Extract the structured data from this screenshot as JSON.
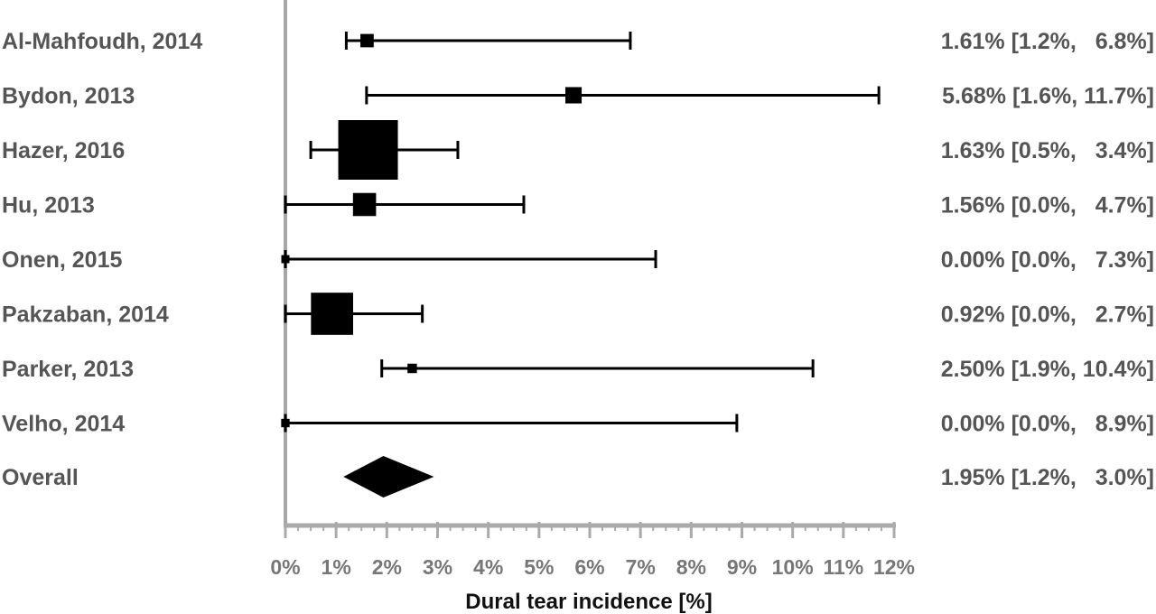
{
  "chart_data": {
    "type": "forest",
    "xlabel": "Dural tear incidence [%]",
    "xlim": [
      0,
      12
    ],
    "x_ticks": [
      0,
      1,
      2,
      3,
      4,
      5,
      6,
      7,
      8,
      9,
      10,
      11,
      12
    ],
    "x_tick_labels": [
      "0%",
      "1%",
      "2%",
      "3%",
      "4%",
      "5%",
      "6%",
      "7%",
      "8%",
      "9%",
      "10%",
      "11%",
      "12%"
    ],
    "studies": [
      {
        "name": "Al-Mahfoudh, 2014",
        "estimate": 1.61,
        "lower": 1.2,
        "upper": 6.8,
        "weight": 2,
        "ci_text": "1.61% [1.2%,   6.8%]"
      },
      {
        "name": "Bydon, 2013",
        "estimate": 5.68,
        "lower": 1.6,
        "upper": 11.7,
        "weight": 3,
        "ci_text": "5.68% [1.6%, 11.7%]"
      },
      {
        "name": "Hazer, 2016",
        "estimate": 1.63,
        "lower": 0.5,
        "upper": 3.4,
        "weight": 40,
        "ci_text": "1.63% [0.5%,   3.4%]"
      },
      {
        "name": "Hu, 2013",
        "estimate": 1.56,
        "lower": 0.0,
        "upper": 4.7,
        "weight": 6,
        "ci_text": "1.56% [0.0%,   4.7%]"
      },
      {
        "name": "Onen, 2015",
        "estimate": 0.0,
        "lower": 0.0,
        "upper": 7.3,
        "weight": 0.5,
        "ci_text": "0.00% [0.0%,   7.3%]"
      },
      {
        "name": "Pakzaban, 2014",
        "estimate": 0.92,
        "lower": 0.0,
        "upper": 2.7,
        "weight": 20,
        "ci_text": "0.92% [0.0%,   2.7%]"
      },
      {
        "name": "Parker, 2013",
        "estimate": 2.5,
        "lower": 1.9,
        "upper": 10.4,
        "weight": 1,
        "ci_text": "2.50% [1.9%, 10.4%]"
      },
      {
        "name": "Velho, 2014",
        "estimate": 0.0,
        "lower": 0.0,
        "upper": 8.9,
        "weight": 0.8,
        "ci_text": "0.00% [0.0%,   8.9%]"
      }
    ],
    "overall": {
      "name": "Overall",
      "estimate": 1.95,
      "lower": 1.2,
      "upper": 3.0,
      "ci_text": "1.95% [1.2%,   3.0%]"
    },
    "reference_line": 0,
    "colors": {
      "marker": "#000000",
      "axis": "#aaaaaa",
      "reference": "#a6a6a6",
      "text": "#555555"
    }
  }
}
